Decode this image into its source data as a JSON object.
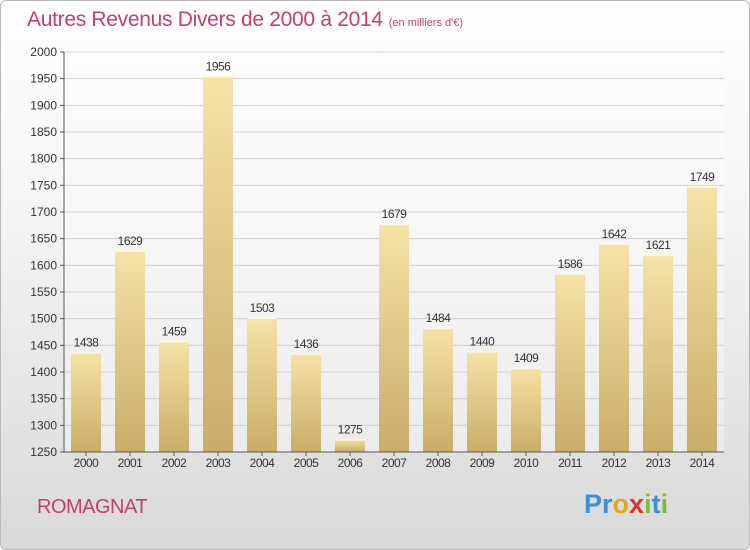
{
  "header": {
    "title": "Autres Revenus Divers de 2000 à 2014",
    "subtitle": "(en milliers d'€)"
  },
  "footer": {
    "town": "ROMAGNAT",
    "logo_letters": [
      "P",
      "r",
      "o",
      "x",
      "i",
      "t",
      "i"
    ]
  },
  "colors": {
    "title": "#c23f6e",
    "bar_light": "#f6e3a6",
    "bar_dark": "#c9ad68",
    "logo": [
      "#3b8fd6",
      "#3b8fd6",
      "#e0a81a",
      "#e5322d",
      "#7dbb3a",
      "#3b8fd6",
      "#7dbb3a"
    ]
  },
  "chart_data": {
    "type": "bar",
    "title": "Autres Revenus Divers de 2000 à 2014",
    "subtitle": "(en milliers d'€)",
    "categories": [
      "2000",
      "2001",
      "2002",
      "2003",
      "2004",
      "2005",
      "2006",
      "2007",
      "2008",
      "2009",
      "2010",
      "2011",
      "2012",
      "2013",
      "2014"
    ],
    "values": [
      1438,
      1629,
      1459,
      1956,
      1503,
      1436,
      1275,
      1679,
      1484,
      1440,
      1409,
      1586,
      1642,
      1621,
      1749
    ],
    "data_labels": [
      "1438",
      "1629",
      "1459",
      "1956",
      "1503",
      "1436",
      "1275",
      "1679",
      "1484",
      "1440",
      "1409",
      "1586",
      "1642",
      "1621",
      "1749"
    ],
    "ylim": [
      1250,
      2000
    ],
    "yticks": [
      1250,
      1300,
      1350,
      1400,
      1450,
      1500,
      1550,
      1600,
      1650,
      1700,
      1750,
      1800,
      1850,
      1900,
      1950,
      2000
    ],
    "xlabel": "",
    "ylabel": "",
    "grid": true
  }
}
